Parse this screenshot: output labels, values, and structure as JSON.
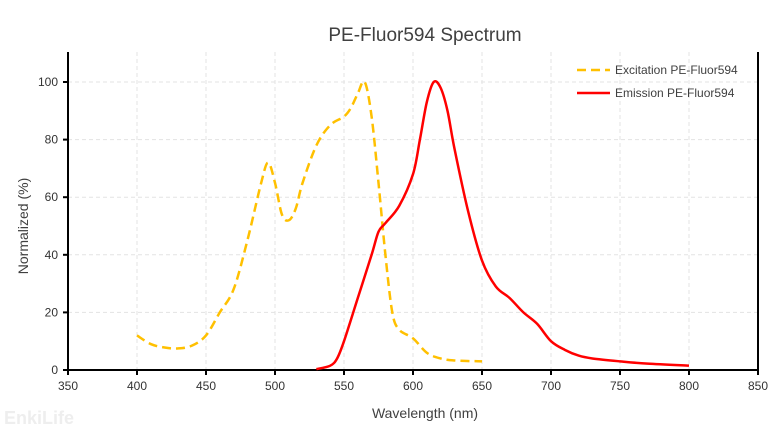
{
  "chart_data": {
    "type": "line",
    "title": "PE-Fluor594  Spectrum",
    "xlabel": "Wavelength (nm)",
    "ylabel": "Normalized (%)",
    "xlim": [
      350,
      850
    ],
    "ylim": [
      0,
      110
    ],
    "xticks": [
      350,
      400,
      450,
      500,
      550,
      600,
      650,
      700,
      750,
      800,
      850
    ],
    "yticks": [
      0,
      20,
      40,
      60,
      80,
      100
    ],
    "grid": true,
    "legend_position": "top-right",
    "series": [
      {
        "name": "Excitation PE-Fluor594",
        "color": "#FFC000",
        "dash": true,
        "x": [
          400,
          410,
          420,
          430,
          440,
          450,
          460,
          470,
          480,
          490,
          495,
          500,
          505,
          510,
          515,
          520,
          530,
          540,
          550,
          555,
          560,
          565,
          570,
          575,
          580,
          585,
          590,
          600,
          610,
          620,
          630,
          650
        ],
        "y": [
          12,
          9,
          7.8,
          7.5,
          8.5,
          12,
          20,
          28,
          45,
          65,
          72,
          65,
          54,
          52,
          56,
          65,
          78,
          85,
          88,
          91,
          96,
          100,
          88,
          65,
          40,
          20,
          14,
          11,
          6,
          4,
          3.3,
          3
        ]
      },
      {
        "name": "Emission PE-Fluor594",
        "color": "#FF0000",
        "dash": false,
        "x": [
          530,
          540,
          545,
          550,
          560,
          570,
          575,
          580,
          590,
          600,
          605,
          610,
          615,
          620,
          625,
          630,
          640,
          650,
          660,
          670,
          680,
          690,
          700,
          710,
          720,
          730,
          750,
          770,
          800
        ],
        "y": [
          0.3,
          1.5,
          4,
          10,
          25,
          40,
          48,
          51,
          57,
          68,
          80,
          93,
          100,
          98,
          90,
          77,
          55,
          38,
          29,
          25,
          20,
          16,
          10,
          7,
          5,
          4,
          3,
          2.2,
          1.5
        ]
      }
    ]
  },
  "watermark": "EnkiLife"
}
